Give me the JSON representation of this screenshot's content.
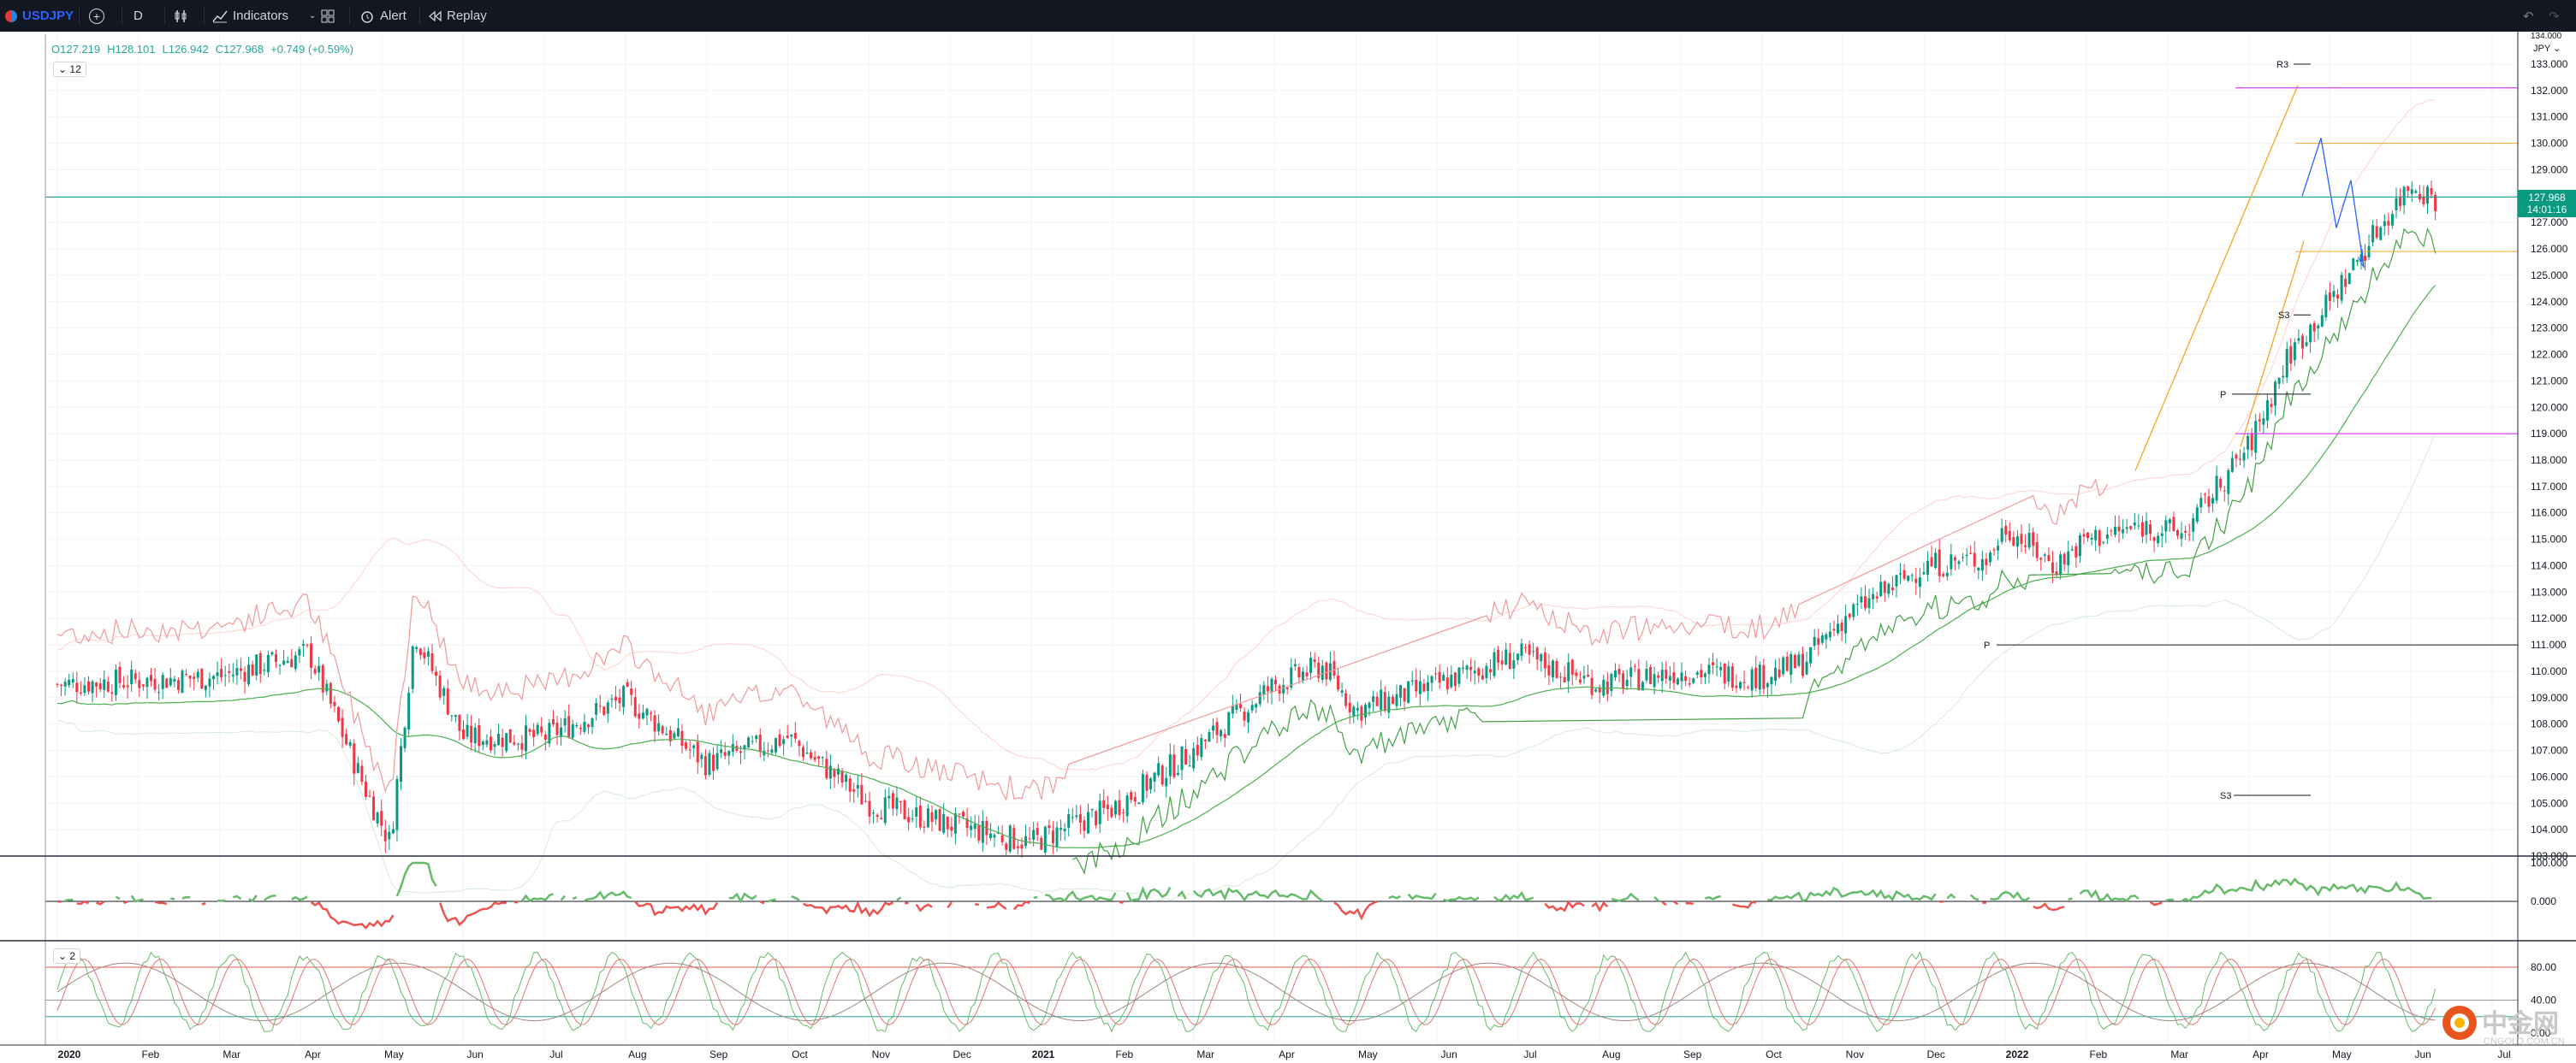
{
  "topbar": {
    "symbol": "USDJPY",
    "interval": "D",
    "indicators_label": "Indicators",
    "alert_label": "Alert",
    "replay_label": "Replay"
  },
  "ohlc": {
    "open": "O127.219",
    "high": "H128.101",
    "low": "L126.942",
    "close": "C127.968",
    "change": "+0.749 (+0.59%)"
  },
  "pane_badges": {
    "main": "12",
    "stoch": "2"
  },
  "price_tag": {
    "price": "127.968",
    "countdown": "14:01:16"
  },
  "price_axis": {
    "currency": "JPY",
    "top_value": "134.000",
    "ticks": [
      "133.000",
      "132.000",
      "131.000",
      "130.000",
      "129.000",
      "128.000",
      "127.000",
      "126.000",
      "125.000",
      "124.000",
      "123.000",
      "122.000",
      "121.000",
      "120.000",
      "119.000",
      "118.000",
      "117.000",
      "116.000",
      "115.000",
      "114.000",
      "113.000",
      "112.000",
      "111.000",
      "110.000",
      "109.000",
      "108.000",
      "107.000",
      "106.000",
      "105.000",
      "104.000",
      "103.000"
    ]
  },
  "indicator_axes": {
    "momentum": [
      "100.000",
      "0.000"
    ],
    "stochastic": [
      "80.00",
      "40.00",
      "0.00"
    ]
  },
  "pivot_labels": {
    "r3": "R3",
    "s3_top": "S3",
    "p_top": "P",
    "p_mid": "P",
    "s3_bottom": "S3"
  },
  "time_axis": [
    "2020",
    "Feb",
    "Mar",
    "Apr",
    "May",
    "Jun",
    "Jul",
    "Aug",
    "Sep",
    "Oct",
    "Nov",
    "Dec",
    "2021",
    "Feb",
    "Mar",
    "Apr",
    "May",
    "Jun",
    "Jul",
    "Aug",
    "Sep",
    "Oct",
    "Nov",
    "Dec",
    "2022",
    "Feb",
    "Mar",
    "Apr",
    "May",
    "Jun",
    "Jul"
  ],
  "watermark": {
    "brand": "中金网",
    "domain": "CNGOLD.COM.CN"
  },
  "colors": {
    "bg_topbar": "#131722",
    "up": "#089981",
    "down": "#f23645",
    "last_price": "#089981",
    "pivot_magenta": "#e040fb",
    "channel_orange": "#f5a623",
    "projection_blue": "#2962ff"
  }
}
